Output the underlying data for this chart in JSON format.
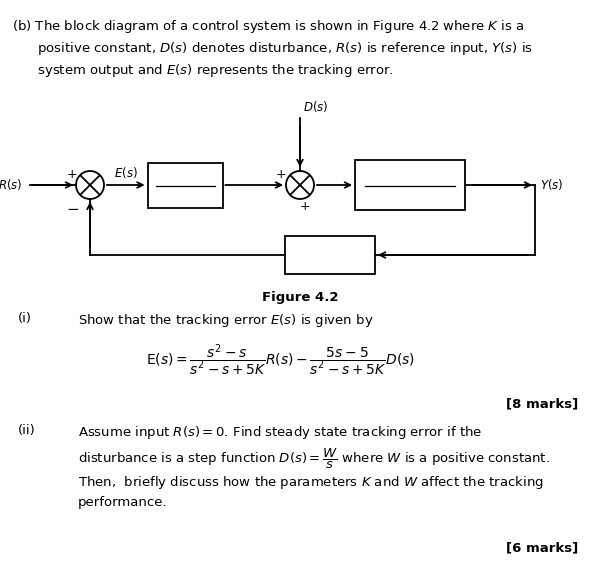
{
  "bg_color": "#ffffff",
  "text_color": "#000000",
  "fig_width": 5.97,
  "fig_height": 5.68,
  "figure_caption": "Figure 4.2",
  "part_i_marks": "[8 marks]",
  "part_ii_marks": "[6 marks]"
}
